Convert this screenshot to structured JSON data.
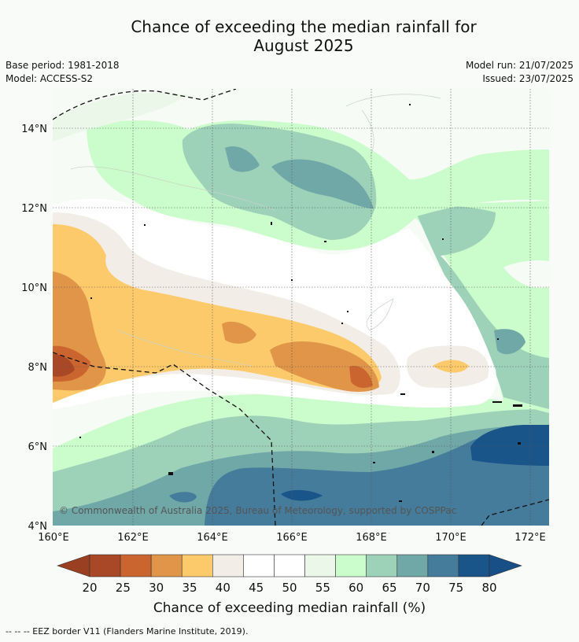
{
  "title_line1": "Chance of exceeding the median rainfall for",
  "title_line2": "August 2025",
  "left_info": {
    "base_period": "Base period: 1981-2018",
    "model": "Model: ACCESS-S2"
  },
  "right_info": {
    "model_run": "Model run: 21/07/2025",
    "issued": "Issued: 23/07/2025"
  },
  "map": {
    "lon_ticks": [
      "160°E",
      "162°E",
      "164°E",
      "166°E",
      "168°E",
      "170°E",
      "172°E"
    ],
    "lat_ticks": [
      "14°N",
      "12°N",
      "10°N",
      "8°N",
      "6°N",
      "4°N"
    ],
    "lon_range": [
      160,
      172.5
    ],
    "lat_range": [
      4,
      15
    ],
    "copyright": "© Commonwealth of Australia 2025, Bureau of Meteorology, supported by COSPPac"
  },
  "colorbar": {
    "title": "Chance of exceeding median rainfall (%)",
    "levels": [
      "20",
      "25",
      "30",
      "35",
      "40",
      "45",
      "50",
      "55",
      "60",
      "65",
      "70",
      "75",
      "80"
    ],
    "colors": [
      "#a84826",
      "#cb6530",
      "#e09548",
      "#fcca6a",
      "#f2ede6",
      "#ffffff",
      "#ffffff",
      "#eaf7e9",
      "#cbfccb",
      "#9dd2b9",
      "#70a8a7",
      "#457b9b",
      "#1a5589"
    ],
    "under_color": "#9a3f21",
    "over_color": "#184f87"
  },
  "footer": "--  --  -- EEZ border V11 (Flanders Marine Institute, 2019)."
}
